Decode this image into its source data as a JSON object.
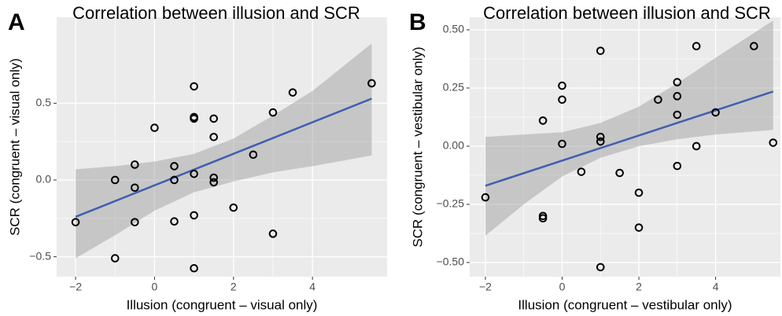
{
  "chart_data": [
    {
      "type": "scatter",
      "panel": "A",
      "title": "Correlation between illusion and SCR",
      "x_label": "Illusion (congruent – visual only)",
      "y_label": "SCR (congruent – visual only)",
      "x": [
        -2,
        -1,
        -1,
        -0.5,
        -0.5,
        -0.5,
        0,
        0.5,
        0.5,
        0.5,
        1,
        1,
        1,
        1,
        1,
        1,
        1.5,
        1.5,
        1.5,
        1.5,
        2,
        2.5,
        3,
        3,
        3.5,
        5.5
      ],
      "values": [
        -0.275,
        0.0,
        -0.51,
        0.1,
        -0.05,
        -0.275,
        0.34,
        0.09,
        0.0,
        -0.27,
        0.61,
        0.41,
        0.4,
        0.04,
        -0.23,
        -0.575,
        0.4,
        0.28,
        0.015,
        -0.015,
        -0.18,
        0.165,
        0.44,
        -0.35,
        0.57,
        0.63
      ],
      "fit": {
        "x": [
          -2,
          5.5
        ],
        "y": [
          -0.24,
          0.53
        ]
      },
      "band": {
        "x": [
          -2,
          -1,
          0,
          1,
          2,
          3,
          4,
          5.5
        ],
        "lower": [
          -0.51,
          -0.36,
          -0.2,
          -0.08,
          -0.01,
          0.05,
          0.09,
          0.16
        ],
        "upper": [
          0.07,
          0.09,
          0.12,
          0.17,
          0.27,
          0.42,
          0.58,
          0.89
        ]
      },
      "xlim": [
        -2.48,
        5.89
      ],
      "ylim": [
        -0.63,
        1.06
      ],
      "xticks": [
        {
          "value": -2,
          "label": "−2"
        },
        0,
        2,
        4
      ],
      "yticks": [
        {
          "value": -0.5,
          "label": "−0.5"
        },
        {
          "value": 0,
          "label": "0.0"
        },
        0.5
      ],
      "grid": true,
      "point_color": "#000000",
      "line_color": "#3f60ae",
      "band_color": "#999999"
    },
    {
      "type": "scatter",
      "panel": "B",
      "title": "Correlation between illusion and SCR",
      "x_label": "Illusion (congruent – vestibular only)",
      "y_label": "SCR (congruent – vestibular only)",
      "x": [
        -2,
        -0.5,
        -0.5,
        -0.5,
        0,
        0,
        0,
        0.5,
        1,
        1,
        1,
        1,
        1.5,
        2,
        2,
        2.5,
        3,
        3,
        3,
        3,
        3.5,
        3.5,
        4,
        5,
        5.5
      ],
      "values": [
        -0.22,
        0.11,
        -0.3,
        -0.31,
        0.26,
        0.2,
        0.01,
        -0.11,
        0.41,
        0.04,
        0.02,
        -0.52,
        -0.115,
        -0.2,
        -0.35,
        0.2,
        0.275,
        0.215,
        0.135,
        -0.085,
        0.43,
        0.0,
        0.145,
        0.43,
        0.015
      ],
      "fit": {
        "x": [
          -2,
          5.5
        ],
        "y": [
          -0.17,
          0.235
        ]
      },
      "band": {
        "x": [
          -2,
          -1,
          0,
          1,
          2,
          3,
          4,
          5.5
        ],
        "lower": [
          -0.385,
          -0.25,
          -0.13,
          -0.05,
          0.0,
          0.03,
          0.05,
          0.07
        ],
        "upper": [
          0.04,
          0.05,
          0.06,
          0.1,
          0.17,
          0.27,
          0.38,
          0.54
        ]
      },
      "xlim": [
        -2.41,
        5.69
      ],
      "ylim": [
        -0.561,
        0.554
      ],
      "xticks": [
        {
          "value": -2,
          "label": "−2"
        },
        0,
        2,
        4
      ],
      "yticks": [
        {
          "value": -0.5,
          "label": "−0.50"
        },
        {
          "value": -0.25,
          "label": "−0.25"
        },
        {
          "value": 0,
          "label": "0.00"
        },
        {
          "value": 0.25,
          "label": "0.25"
        },
        {
          "value": 0.5,
          "label": "0.50"
        }
      ],
      "grid": true,
      "point_color": "#000000",
      "line_color": "#3f60ae",
      "band_color": "#999999"
    }
  ]
}
